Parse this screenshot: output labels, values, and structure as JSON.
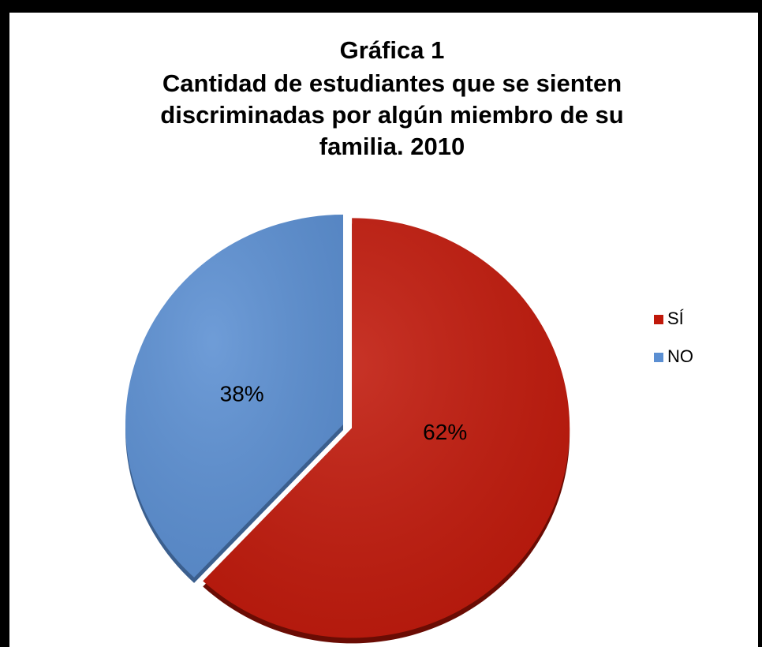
{
  "chart_data": {
    "type": "pie",
    "title": [
      "Gráfica 1",
      "Cantidad de estudiantes que se sienten",
      "discriminadas por algún miembro de su",
      "familia. 2010"
    ],
    "categories": [
      "SÍ",
      "NO"
    ],
    "values": [
      62,
      38
    ],
    "value_labels": [
      "62%",
      "38%"
    ],
    "colors": [
      "#c0180a",
      "#5b8fd2"
    ],
    "legend": "right"
  }
}
